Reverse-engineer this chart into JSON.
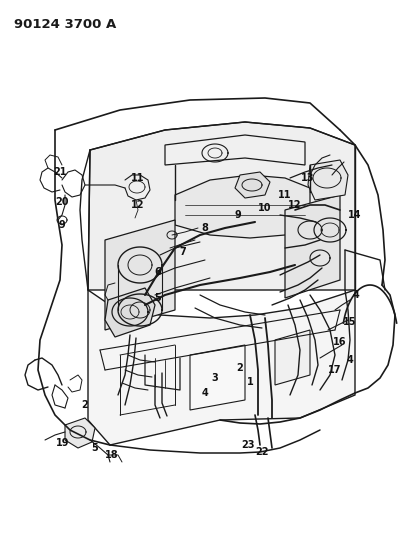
{
  "title_text": "90124 3700 A",
  "bg_color": "#ffffff",
  "line_color": "#1a1a1a",
  "label_color": "#111111",
  "label_fontsize": 7.0,
  "title_fontsize": 9.5,
  "fig_width": 4.03,
  "fig_height": 5.33,
  "dpi": 100
}
